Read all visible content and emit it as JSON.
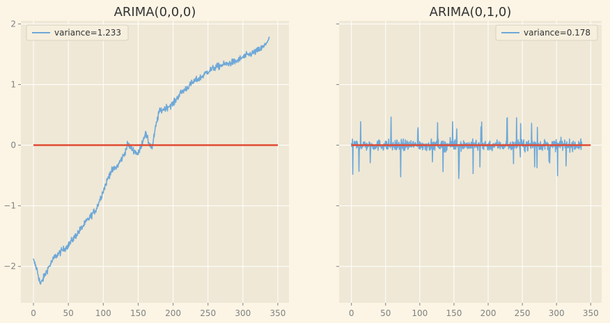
{
  "chart_data": [
    {
      "type": "line",
      "title": "ARIMA(0,0,0)",
      "xlabel": "",
      "ylabel": "",
      "xlim": [
        -18,
        366
      ],
      "ylim": [
        -2.6,
        2.05
      ],
      "xticks": [
        0,
        50,
        100,
        150,
        200,
        250,
        300,
        350
      ],
      "xtick_labels": [
        "0",
        "50",
        "100",
        "150",
        "200",
        "250",
        "300",
        "350"
      ],
      "yticks": [
        -2,
        -1,
        0,
        1,
        2
      ],
      "ytick_labels": [
        "−2",
        "−1",
        "0",
        "1",
        "2"
      ],
      "grid": true,
      "legend_position": "top-left",
      "series": [
        {
          "name": "variance=1.233",
          "color": "#6ea8d8",
          "kind": "noisy-walk",
          "x": [
            0,
            5,
            10,
            20,
            30,
            40,
            50,
            60,
            70,
            80,
            90,
            100,
            110,
            120,
            130,
            135,
            140,
            145,
            150,
            155,
            160,
            165,
            170,
            175,
            180,
            190,
            200,
            210,
            220,
            230,
            240,
            250,
            260,
            270,
            280,
            290,
            300,
            310,
            320,
            330,
            335,
            338
          ],
          "y": [
            -1.9,
            -2.05,
            -2.3,
            -2.05,
            -1.85,
            -1.75,
            -1.65,
            -1.5,
            -1.35,
            -1.2,
            -1.05,
            -0.75,
            -0.45,
            -0.35,
            -0.15,
            0.02,
            -0.05,
            -0.1,
            -0.15,
            0.02,
            0.2,
            0.05,
            -0.05,
            0.3,
            0.55,
            0.62,
            0.68,
            0.85,
            0.95,
            1.05,
            1.12,
            1.22,
            1.28,
            1.32,
            1.35,
            1.38,
            1.45,
            1.5,
            1.55,
            1.62,
            1.72,
            1.75
          ],
          "noise": 0.1
        },
        {
          "name": "",
          "color": "#e24a33",
          "kind": "line",
          "x": [
            0,
            350
          ],
          "y": [
            0,
            0
          ]
        }
      ]
    },
    {
      "type": "line",
      "title": "ARIMA(0,1,0)",
      "xlabel": "",
      "ylabel": "",
      "xlim": [
        -18,
        366
      ],
      "ylim": [
        -2.6,
        2.05
      ],
      "xticks": [
        0,
        50,
        100,
        150,
        200,
        250,
        300,
        350
      ],
      "xtick_labels": [
        "0",
        "50",
        "100",
        "150",
        "200",
        "250",
        "300",
        "350"
      ],
      "yticks": [
        -2,
        -1,
        0,
        1,
        2
      ],
      "ytick_labels": [
        "",
        "",
        "",
        "",
        ""
      ],
      "grid": true,
      "legend_position": "top-right",
      "series": [
        {
          "name": "variance=0.178",
          "color": "#6ea8d8",
          "kind": "noise",
          "x_range": [
            0,
            337
          ],
          "mean": 0,
          "amplitude": 0.2,
          "spike": 0.5
        },
        {
          "name": "",
          "color": "#e24a33",
          "kind": "line",
          "x": [
            0,
            350
          ],
          "y": [
            0,
            0
          ]
        }
      ]
    }
  ]
}
